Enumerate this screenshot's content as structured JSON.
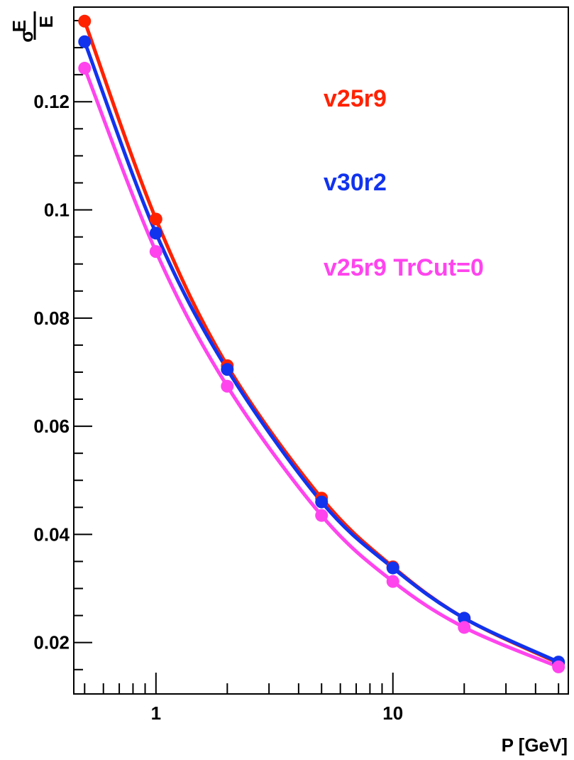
{
  "chart_data": {
    "type": "line",
    "x_scale": "log",
    "xlim": [
      0.45,
      55
    ],
    "ylim": [
      0.0105,
      0.1375
    ],
    "grid": false,
    "xlabel": "P [GeV]",
    "ylabel": {
      "symbol": "σ",
      "subscript": "E",
      "denominator": "E"
    },
    "x_ticks": [
      {
        "value": 1,
        "label": "1"
      },
      {
        "value": 10,
        "label": "10"
      }
    ],
    "y_ticks": [
      {
        "value": 0.02,
        "label": "0.02"
      },
      {
        "value": 0.04,
        "label": "0.04"
      },
      {
        "value": 0.06,
        "label": "0.06"
      },
      {
        "value": 0.08,
        "label": "0.08"
      },
      {
        "value": 0.1,
        "label": "0.1"
      },
      {
        "value": 0.12,
        "label": "0.12"
      }
    ],
    "legend_placement": "upper-right",
    "x": [
      0.5,
      1,
      2,
      5,
      10,
      20,
      50
    ],
    "series": [
      {
        "name": "v25r9",
        "color": "#ff2200",
        "values": [
          0.1349,
          0.0983,
          0.0712,
          0.0467,
          0.034,
          0.0245,
          0.0162
        ]
      },
      {
        "name": "v30r2",
        "color": "#1133ee",
        "values": [
          0.1311,
          0.0957,
          0.0705,
          0.046,
          0.0338,
          0.0245,
          0.0164
        ]
      },
      {
        "name": "v25r9 TrCut=0",
        "color": "#ff44ee",
        "values": [
          0.1262,
          0.0923,
          0.0674,
          0.0435,
          0.0313,
          0.0228,
          0.0155
        ]
      }
    ]
  }
}
